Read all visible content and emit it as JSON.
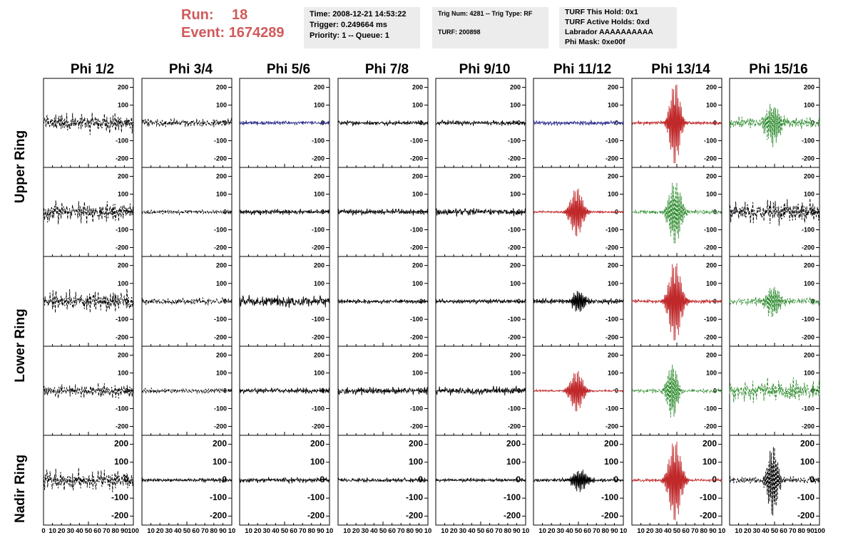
{
  "header": {
    "run_label": "Run:",
    "run_value": "18",
    "event_label": "Event:",
    "event_value": "1674289",
    "time_box": [
      "Time: 2008-12-21 14:53:22",
      "Trigger: 0.249664 ms",
      "Priority: 1 -- Queue: 1"
    ],
    "trig_box": [
      "Trig Num: 4281 -- Trig Type: RF",
      "",
      "TURF: 200898"
    ],
    "turf_box": [
      "TURF This Hold: 0x1",
      "TURF Active Holds: 0xd",
      "Labrador AAAAAAAAAA",
      "Phi Mask: 0xe00f"
    ]
  },
  "colors": {
    "black": "#000000",
    "blue": "#2b2b8c",
    "red": "#c0282a",
    "green": "#2e8b2e",
    "header_red": "#d05a5a",
    "box_gray": "#ececec"
  },
  "chart_data": {
    "type": "line",
    "title": "",
    "column_titles": [
      "Phi 1/2",
      "Phi 3/4",
      "Phi 5/6",
      "Phi 7/8",
      "Phi 9/10",
      "Phi 11/12",
      "Phi 13/14",
      "Phi 15/16"
    ],
    "row_titles": [
      "Upper Ring",
      "Lower Ring",
      "Nadir Ring"
    ],
    "ylim": [
      -250,
      250
    ],
    "yticks": [
      200,
      100,
      0,
      -100,
      -200
    ],
    "ytick_labels": [
      "200",
      "100",
      "0",
      "-100",
      "-200"
    ],
    "xlim": [
      0,
      100
    ],
    "xtick_labels": [
      "0",
      "10",
      "20",
      "30",
      "40",
      "50",
      "60",
      "70",
      "80",
      "90",
      "100"
    ],
    "xtick_labels_trunc": [
      "10",
      "20",
      "30",
      "40",
      "50",
      "60",
      "70",
      "80",
      "90",
      "10"
    ],
    "xtick_labels_last": [
      "10",
      "20",
      "30",
      "40",
      "50",
      "60",
      "70",
      "80",
      "90",
      "100"
    ],
    "rows": [
      [
        {
          "color": "black",
          "dashed": true,
          "amp": 55,
          "pulse": null
        },
        {
          "color": "black",
          "dashed": true,
          "amp": 22,
          "pulse": null
        },
        {
          "color": "blue",
          "dashed": false,
          "amp": 12,
          "pulse": null
        },
        {
          "color": "black",
          "dashed": false,
          "amp": 12,
          "pulse": null
        },
        {
          "color": "black",
          "dashed": false,
          "amp": 14,
          "pulse": null
        },
        {
          "color": "blue",
          "dashed": false,
          "amp": 12,
          "pulse": null
        },
        {
          "color": "red",
          "dashed": false,
          "amp": 10,
          "pulse": {
            "center": 48,
            "amp": 240,
            "width": 5
          }
        },
        {
          "color": "green",
          "dashed": true,
          "amp": 30,
          "pulse": {
            "center": 48,
            "amp": 110,
            "width": 7
          }
        }
      ],
      [
        {
          "color": "black",
          "dashed": true,
          "amp": 55,
          "pulse": null
        },
        {
          "color": "black",
          "dashed": true,
          "amp": 12,
          "pulse": null
        },
        {
          "color": "black",
          "dashed": false,
          "amp": 14,
          "pulse": null
        },
        {
          "color": "black",
          "dashed": false,
          "amp": 16,
          "pulse": null
        },
        {
          "color": "black",
          "dashed": false,
          "amp": 20,
          "pulse": null
        },
        {
          "color": "red",
          "dashed": false,
          "amp": 6,
          "pulse": {
            "center": 48,
            "amp": 140,
            "width": 6
          }
        },
        {
          "color": "green",
          "dashed": true,
          "amp": 12,
          "pulse": {
            "center": 48,
            "amp": 180,
            "width": 6
          }
        },
        {
          "color": "black",
          "dashed": true,
          "amp": 60,
          "pulse": null
        }
      ],
      [
        {
          "color": "black",
          "dashed": true,
          "amp": 55,
          "pulse": null
        },
        {
          "color": "black",
          "dashed": true,
          "amp": 18,
          "pulse": null
        },
        {
          "color": "black",
          "dashed": false,
          "amp": 30,
          "pulse": null
        },
        {
          "color": "black",
          "dashed": false,
          "amp": 12,
          "pulse": null
        },
        {
          "color": "black",
          "dashed": false,
          "amp": 12,
          "pulse": null
        },
        {
          "color": "black",
          "dashed": false,
          "amp": 14,
          "pulse": {
            "center": 50,
            "amp": 60,
            "width": 6
          }
        },
        {
          "color": "red",
          "dashed": false,
          "amp": 10,
          "pulse": {
            "center": 48,
            "amp": 230,
            "width": 6
          }
        },
        {
          "color": "green",
          "dashed": true,
          "amp": 20,
          "pulse": {
            "center": 48,
            "amp": 90,
            "width": 7
          }
        }
      ],
      [
        {
          "color": "black",
          "dashed": true,
          "amp": 35,
          "pulse": null
        },
        {
          "color": "black",
          "dashed": true,
          "amp": 14,
          "pulse": null
        },
        {
          "color": "black",
          "dashed": false,
          "amp": 14,
          "pulse": null
        },
        {
          "color": "black",
          "dashed": false,
          "amp": 20,
          "pulse": null
        },
        {
          "color": "black",
          "dashed": false,
          "amp": 22,
          "pulse": null
        },
        {
          "color": "red",
          "dashed": false,
          "amp": 6,
          "pulse": {
            "center": 48,
            "amp": 120,
            "width": 6
          }
        },
        {
          "color": "green",
          "dashed": true,
          "amp": 12,
          "pulse": {
            "center": 45,
            "amp": 160,
            "width": 5
          }
        },
        {
          "color": "green",
          "dashed": true,
          "amp": 60,
          "pulse": null
        }
      ],
      [
        {
          "color": "black",
          "dashed": true,
          "amp": 55,
          "pulse": null
        },
        {
          "color": "black",
          "dashed": false,
          "amp": 12,
          "pulse": null
        },
        {
          "color": "black",
          "dashed": false,
          "amp": 14,
          "pulse": null
        },
        {
          "color": "black",
          "dashed": false,
          "amp": 12,
          "pulse": null
        },
        {
          "color": "black",
          "dashed": false,
          "amp": 10,
          "pulse": null
        },
        {
          "color": "black",
          "dashed": false,
          "amp": 10,
          "pulse": {
            "center": 52,
            "amp": 60,
            "width": 7
          }
        },
        {
          "color": "red",
          "dashed": false,
          "amp": 8,
          "pulse": {
            "center": 48,
            "amp": 230,
            "width": 6
          }
        },
        {
          "color": "black",
          "dashed": true,
          "amp": 18,
          "pulse": {
            "center": 48,
            "amp": 200,
            "width": 5
          }
        }
      ]
    ]
  }
}
